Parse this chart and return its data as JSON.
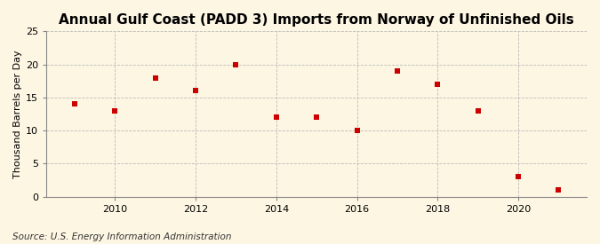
{
  "title": "Annual Gulf Coast (PADD 3) Imports from Norway of Unfinished Oils",
  "ylabel": "Thousand Barrels per Day",
  "source": "Source: U.S. Energy Information Administration",
  "years": [
    2009,
    2010,
    2011,
    2012,
    2013,
    2014,
    2015,
    2016,
    2017,
    2018,
    2019,
    2020,
    2021
  ],
  "values": [
    14,
    13,
    18,
    16,
    20,
    12,
    12,
    10,
    19,
    17,
    13,
    3,
    1
  ],
  "marker_color": "#cc0000",
  "marker_size": 5,
  "background_color": "#fdf6e3",
  "plot_bg_color": "#fdf6e3",
  "grid_color": "#bbbbbb",
  "spine_color": "#888888",
  "ylim": [
    0,
    25
  ],
  "yticks": [
    0,
    5,
    10,
    15,
    20,
    25
  ],
  "xlim": [
    2008.3,
    2021.7
  ],
  "xticks": [
    2010,
    2012,
    2014,
    2016,
    2018,
    2020
  ],
  "title_fontsize": 11,
  "ylabel_fontsize": 8,
  "tick_fontsize": 8,
  "source_fontsize": 7.5
}
